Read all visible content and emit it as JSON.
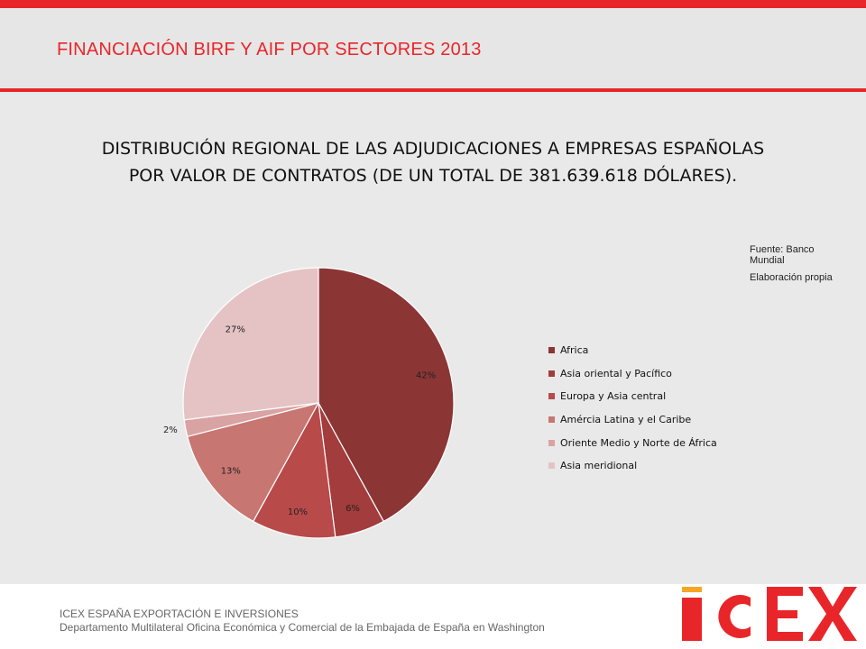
{
  "header": {
    "title": "FINANCIACIÓN BIRF Y AIF POR SECTORES 2013"
  },
  "source": {
    "line1": "Fuente: Banco Mundial",
    "line2": "Elaboración propia"
  },
  "footer": {
    "org": "ICEX ESPAÑA EXPORTACIÓN  E INVERSIONES",
    "dept": "Departamento Multilateral Oficina Económica y Comercial de la Embajada de España en Washington"
  },
  "logo": {
    "text": "ICEX",
    "color": "#e8262a",
    "accent": "#f5a623"
  },
  "chart_data": {
    "type": "pie",
    "title": "DISTRIBUCIÓN REGIONAL DE LAS ADJUDICACIONES A EMPRESAS ESPAÑOLAS POR VALOR DE CONTRATOS (DE UN TOTAL DE 381.639.618 DÓLARES).",
    "legend_position": "right",
    "categories": [
      "Africa",
      "Asia oriental y Pacífico",
      "Europa y Asia central",
      "Amércia Latina y el Caribe",
      "Oriente Medio y Norte de África",
      "Asia meridional"
    ],
    "values": [
      42,
      6,
      10,
      13,
      2,
      27
    ],
    "labels": [
      "42%",
      "6%",
      "10%",
      "13%",
      "2%",
      "27%"
    ],
    "colors": [
      "#8b3535",
      "#a33c3c",
      "#b84a4a",
      "#c87672",
      "#d9a3a3",
      "#e5c3c4"
    ]
  }
}
